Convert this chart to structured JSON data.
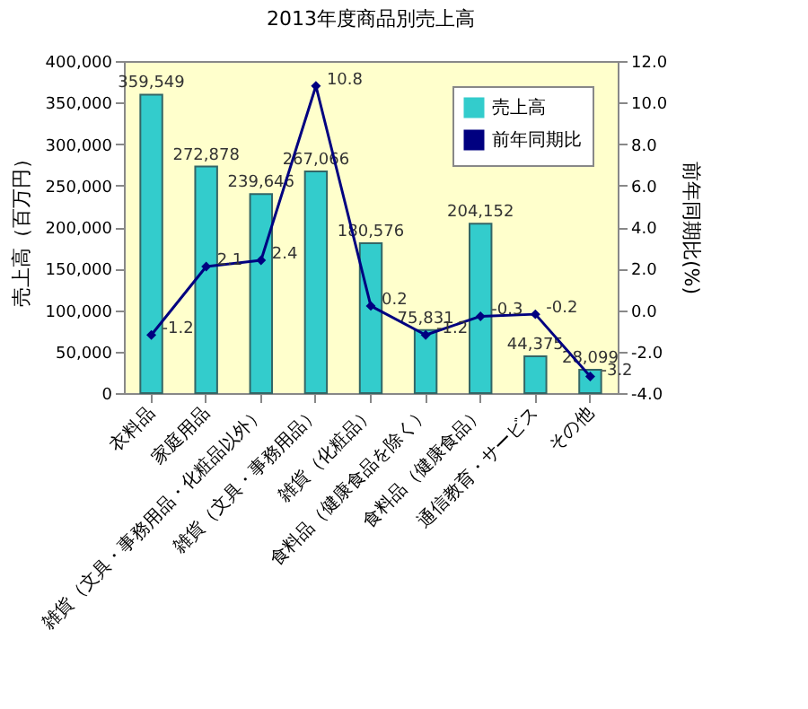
{
  "chart_data": {
    "type": "bar",
    "title": "2013年度商品別売上高",
    "categories": [
      "衣料品",
      "家庭用品",
      "雑貨（文具・事務用品・化粧品以外）",
      "雑貨（文具・事務用品）",
      "雑貨（化粧品）",
      "食料品（健康食品を除く）",
      "食料品（健康食品）",
      "通信教育・サービス",
      "その他"
    ],
    "series": [
      {
        "name": "売上高",
        "color": "#33cccc",
        "values": [
          359549,
          272878,
          239646,
          267066,
          180576,
          75831,
          204152,
          44375,
          28099
        ],
        "value_labels": [
          "359,549",
          "272,878",
          "239,646",
          "267,066",
          "180,576",
          "75,831",
          "204,152",
          "44,375",
          "28,099"
        ]
      },
      {
        "name": "前年同期比",
        "type": "line",
        "axis": "y2",
        "color": "#000080",
        "marker": "diamond",
        "line_style": "solid",
        "values": [
          -1.2,
          2.1,
          2.4,
          10.8,
          0.2,
          -1.2,
          -0.3,
          -0.2,
          -3.2
        ],
        "value_labels": [
          "-1.2",
          "2.1",
          "2.4",
          "10.8",
          "0.2",
          "-1.2",
          "-0.3",
          "-0.2",
          "-3.2"
        ]
      }
    ],
    "ylabel": "売上高（百万円）",
    "y2label": "前年同期比(%)",
    "ylim": [
      0,
      400000
    ],
    "yticks": [
      0,
      {
        "value": 50000,
        "label": "50,000"
      },
      {
        "value": 100000,
        "label": "100,000"
      },
      {
        "value": 150000,
        "label": "150,000"
      },
      {
        "value": 200000,
        "label": "200,000"
      },
      {
        "value": 250000,
        "label": "250,000"
      },
      {
        "value": 300000,
        "label": "300,000"
      },
      {
        "value": 350000,
        "label": "350,000"
      },
      {
        "value": 400000,
        "label": "400,000"
      }
    ],
    "y2lim": [
      -4,
      12
    ],
    "y2ticks": [
      {
        "value": -4,
        "label": "-4.0"
      },
      {
        "value": -2,
        "label": "-2.0"
      },
      {
        "value": 0,
        "label": "0.0"
      },
      {
        "value": 2,
        "label": "2.0"
      },
      {
        "value": 4,
        "label": "4.0"
      },
      {
        "value": 6,
        "label": "6.0"
      },
      {
        "value": 8,
        "label": "8.0"
      },
      {
        "value": 10,
        "label": "10.0"
      },
      {
        "value": 12,
        "label": "12.0"
      }
    ],
    "legend": "top right",
    "grid": false
  }
}
